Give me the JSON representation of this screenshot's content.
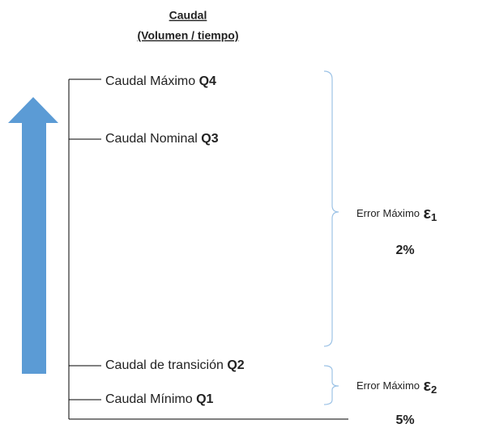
{
  "title": {
    "line1": "Caudal",
    "line2": "(Volumen / tiempo)"
  },
  "levels": [
    {
      "label": "Caudal Máximo",
      "code": "Q4"
    },
    {
      "label": "Caudal Nominal",
      "code": "Q3"
    },
    {
      "label": "Caudal de transición",
      "code": "Q2"
    },
    {
      "label": "Caudal Mínimo",
      "code": "Q1"
    }
  ],
  "errors": [
    {
      "label": "Error Máximo",
      "symbol": "ε",
      "subscript": "1",
      "value": "2%"
    },
    {
      "label": "Error Máximo",
      "symbol": "ε",
      "subscript": "2",
      "value": "5%"
    }
  ]
}
